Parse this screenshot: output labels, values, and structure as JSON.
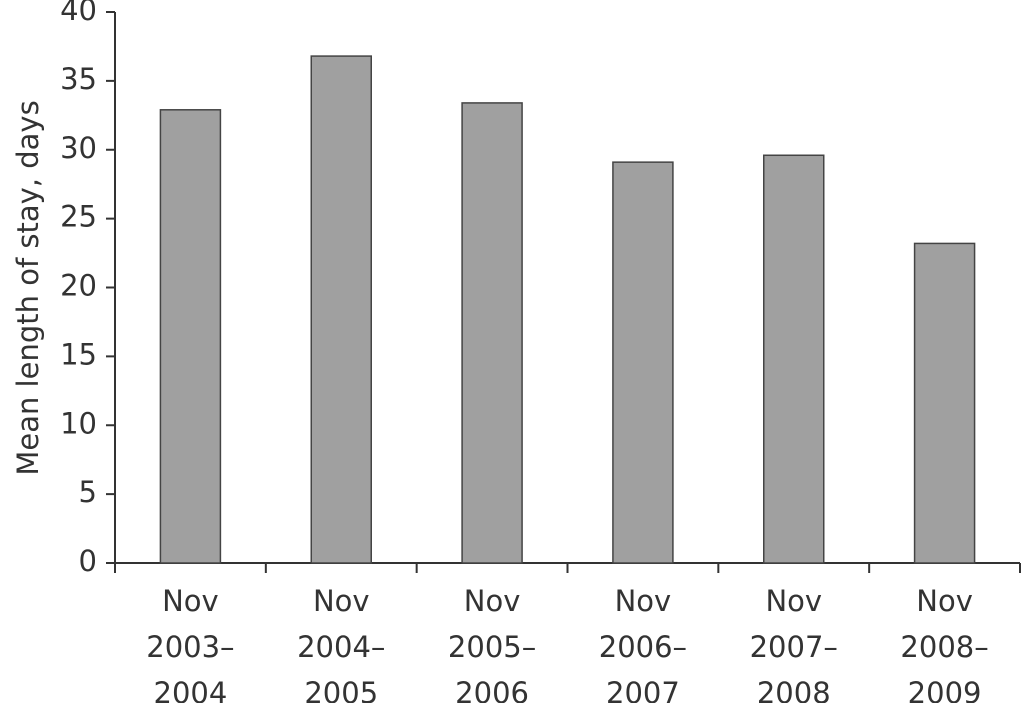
{
  "chart_data": {
    "type": "bar",
    "y_label": "Mean length of stay,  days",
    "categories": [
      [
        "Nov",
        "2003–",
        "2004"
      ],
      [
        "Nov",
        "2004–",
        "2005"
      ],
      [
        "Nov",
        "2005–",
        "2006"
      ],
      [
        "Nov",
        "2006–",
        "2007"
      ],
      [
        "Nov",
        "2007–",
        "2008"
      ],
      [
        "Nov",
        "2008–",
        "2009"
      ]
    ],
    "values": [
      32.9,
      36.8,
      33.4,
      29.1,
      29.6,
      23.2
    ],
    "color": "#a0a0a0",
    "ylim": [
      0,
      40
    ],
    "yticks": [
      0,
      5,
      10,
      15,
      20,
      25,
      30,
      35,
      40
    ],
    "grid": false
  }
}
